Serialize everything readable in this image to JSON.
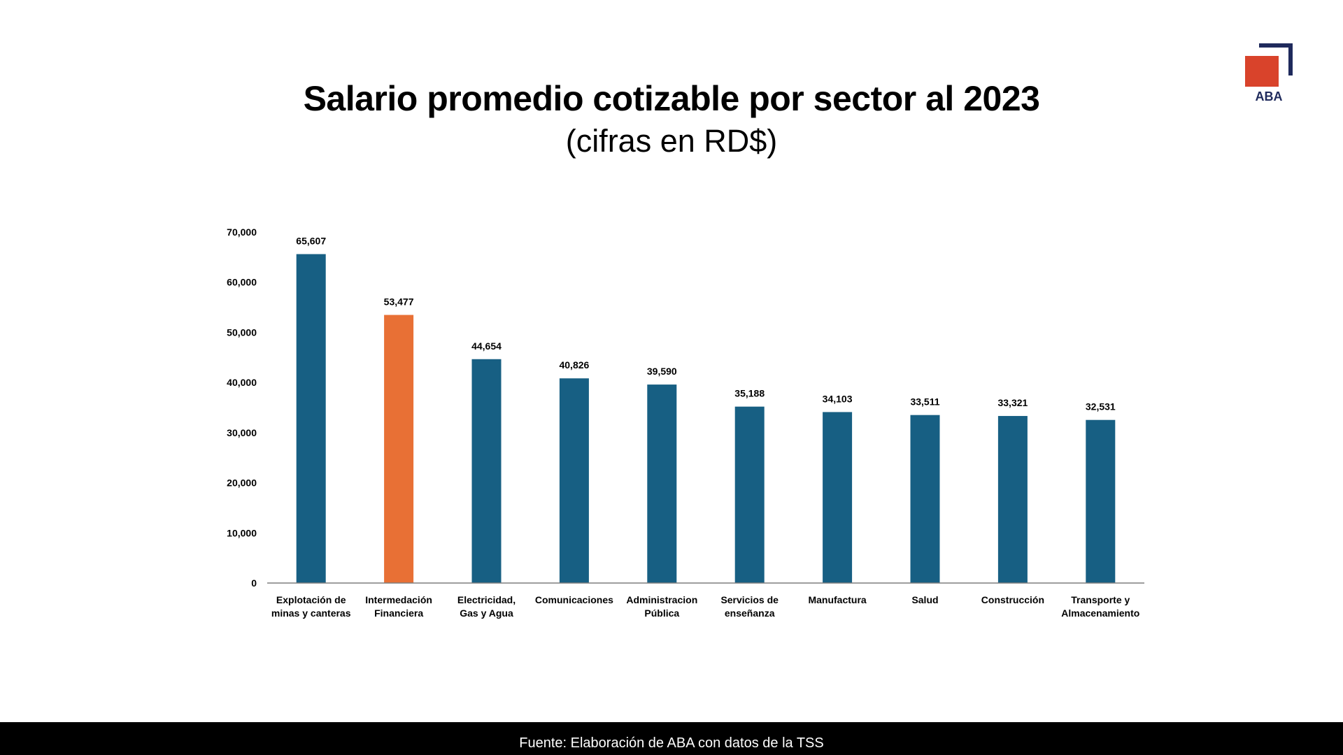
{
  "slide": {
    "title": "Salario promedio cotizable por sector al 2023",
    "subtitle": "(cifras en RD$)",
    "logo_text": "ABA",
    "footer": "Fuente: Elaboración de ABA con datos de la TSS"
  },
  "colors": {
    "bar_default": "#175f83",
    "bar_highlight": "#e87035",
    "logo_square": "#d9432b",
    "logo_frame": "#1f2a5c",
    "axis": "#7f7f7f",
    "footer_bg": "#000000"
  },
  "chart_data": {
    "type": "bar",
    "title": "Salario promedio cotizable por sector al 2023",
    "subtitle": "(cifras en RD$)",
    "xlabel": "",
    "ylabel": "",
    "ylim": [
      0,
      70000
    ],
    "grid": false,
    "y_ticks": [
      0,
      10000,
      20000,
      30000,
      40000,
      50000,
      60000,
      70000
    ],
    "y_tick_labels": [
      "0",
      "10,000",
      "20,000",
      "30,000",
      "40,000",
      "50,000",
      "60,000",
      "70,000"
    ],
    "categories": [
      [
        "Explotación de",
        "minas y canteras"
      ],
      [
        "Intermedación",
        "Financiera"
      ],
      [
        "Electricidad,",
        "Gas y Agua"
      ],
      [
        "Comunicaciones"
      ],
      [
        "Administracion",
        "Pública"
      ],
      [
        "Servicios de",
        "enseñanza"
      ],
      [
        "Manufactura"
      ],
      [
        "Salud"
      ],
      [
        "Construcción"
      ],
      [
        "Transporte y",
        "Almacenamiento"
      ]
    ],
    "values": [
      65607,
      53477,
      44654,
      40826,
      39590,
      35188,
      34103,
      33511,
      33321,
      32531
    ],
    "value_labels": [
      "65,607",
      "53,477",
      "44,654",
      "40,826",
      "39,590",
      "35,188",
      "34,103",
      "33,511",
      "33,321",
      "32,531"
    ],
    "highlight_index": 1
  }
}
